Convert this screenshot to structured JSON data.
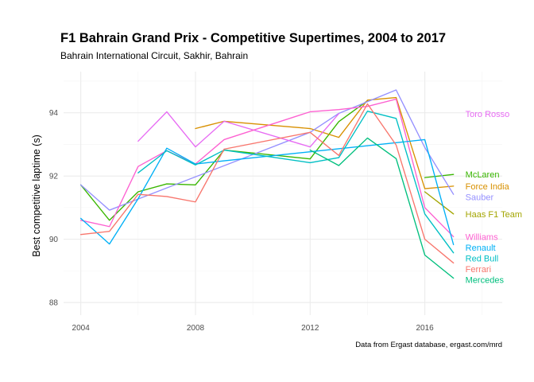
{
  "chart_data": {
    "type": "line",
    "title": "F1 Bahrain Grand Prix - Competitive Supertimes, 2004 to 2017",
    "subtitle": "Bahrain International Circuit, Sakhir, Bahrain",
    "xlabel": "",
    "ylabel": "Best competitive laptime (s)",
    "caption": "Data from Ergast database, ergast.com/mrd",
    "xlim": [
      2003.4,
      2018.7
    ],
    "ylim": [
      87.6,
      95.3
    ],
    "x_ticks": [
      "2004",
      "2008",
      "2012",
      "2016"
    ],
    "x_tick_values": [
      2004,
      2008,
      2012,
      2016
    ],
    "y_ticks": [
      "88",
      "90",
      "92",
      "94"
    ],
    "y_tick_values": [
      88,
      90,
      92,
      94
    ],
    "grid": true,
    "legend": "labels at right end of each line",
    "series": [
      {
        "name": "McLaren",
        "color": "#39b600",
        "x": [
          2004,
          2005,
          2006,
          2007,
          2008,
          2009,
          2012,
          2013,
          2014,
          2015,
          2016,
          2017
        ],
        "values": [
          91.72,
          90.6,
          91.5,
          91.75,
          91.72,
          92.82,
          92.54,
          93.72,
          94.38,
          null,
          91.95,
          92.05
        ]
      },
      {
        "name": "Force India",
        "color": "#d89000",
        "x": [
          2008,
          2009,
          2012,
          2013,
          2014,
          2015,
          2016,
          2017
        ],
        "values": [
          93.5,
          93.73,
          93.5,
          93.22,
          94.4,
          94.48,
          91.6,
          91.68
        ]
      },
      {
        "name": "Sauber",
        "color": "#9590ff",
        "x": [
          2004,
          2005,
          2012,
          2013,
          2015,
          2016,
          2017
        ],
        "values": [
          91.72,
          90.92,
          93.38,
          93.98,
          94.72,
          92.9,
          91.42
        ]
      },
      {
        "name": "Toro Rosso",
        "color": "#e76bf3",
        "x": [
          2006,
          2007,
          2008,
          2009,
          2012,
          2013
        ],
        "values": [
          93.1,
          94.03,
          92.92,
          93.73,
          92.92,
          93.97
        ]
      },
      {
        "name": "Haas F1 Team",
        "color": "#a3a500",
        "x": [
          2016,
          2017
        ],
        "values": [
          91.5,
          90.8
        ]
      },
      {
        "name": "Williams",
        "color": "#fd61d1",
        "x": [
          2004,
          2005,
          2006,
          2007,
          2008,
          2009,
          2012,
          2013,
          2014,
          2015,
          2016,
          2017
        ],
        "values": [
          90.6,
          90.4,
          92.3,
          92.8,
          92.38,
          93.15,
          94.03,
          94.1,
          94.2,
          94.43,
          91.0,
          90.08
        ]
      },
      {
        "name": "Renault",
        "color": "#00b0f6",
        "x": [
          2004,
          2005,
          2006,
          2007,
          2008,
          2009,
          2016,
          2017
        ],
        "values": [
          90.66,
          89.85,
          91.28,
          92.88,
          92.38,
          92.48,
          93.15,
          89.83
        ]
      },
      {
        "name": "Red Bull",
        "color": "#00bfc4",
        "x": [
          2005,
          2006,
          2007,
          2008,
          2009,
          2012,
          2013,
          2014,
          2015,
          2016,
          2017
        ],
        "values": [
          null,
          92.1,
          92.8,
          92.35,
          92.82,
          92.42,
          92.58,
          94.05,
          93.82,
          90.8,
          89.57
        ]
      },
      {
        "name": "Ferrari",
        "color": "#f8766d",
        "x": [
          2004,
          2005,
          2006,
          2007,
          2008,
          2009,
          2012,
          2013,
          2014,
          2015,
          2016,
          2017
        ],
        "values": [
          90.15,
          90.25,
          91.42,
          91.35,
          91.18,
          92.85,
          93.38,
          92.65,
          94.28,
          92.98,
          90.0,
          89.25
        ]
      },
      {
        "name": "Mercedes",
        "color": "#00bf7d",
        "x": [
          2012,
          2013,
          2014,
          2015,
          2016,
          2017
        ],
        "values": [
          92.82,
          92.33,
          93.2,
          92.55,
          89.5,
          88.77
        ]
      }
    ]
  }
}
